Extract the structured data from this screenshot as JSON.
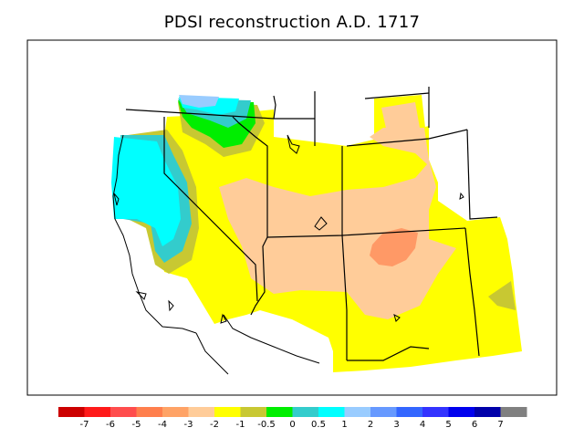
{
  "title": "PDSI reconstruction A.D. 1717",
  "colors": {
    "c_m7": "#cc0000",
    "c_m6": "#ff1a1a",
    "c_m5": "#ff4d4d",
    "c_m4": "#ff7f4d",
    "c_m3": "#ffa366",
    "c_m2": "#ffcc99",
    "c_m1": "#ffff00",
    "c_m05": "#c8c832",
    "c_0": "#00ee00",
    "c_05": "#33cccc",
    "c_1": "#00ffff",
    "c_2": "#99ccff",
    "c_3": "#6699ff",
    "c_4": "#3366ff",
    "c_5": "#3333ff",
    "c_6": "#0000ee",
    "c_7": "#0000aa",
    "c_gt7": "#808080"
  },
  "legend": {
    "bins": [
      "#cc0000",
      "#ff1a1a",
      "#ff4d4d",
      "#ff7f4d",
      "#ffa366",
      "#ffcc99",
      "#ffff00",
      "#c8c832",
      "#00ee00",
      "#33cccc",
      "#00ffff",
      "#99ccff",
      "#6699ff",
      "#3366ff",
      "#3333ff",
      "#0000ee",
      "#0000aa",
      "#808080"
    ],
    "ticks": [
      "-7",
      "-6",
      "-5",
      "-4",
      "-3",
      "-2",
      "-1",
      "-0.5",
      "0",
      "0.5",
      "1",
      "2",
      "3",
      "4",
      "5",
      "6",
      "7"
    ]
  }
}
